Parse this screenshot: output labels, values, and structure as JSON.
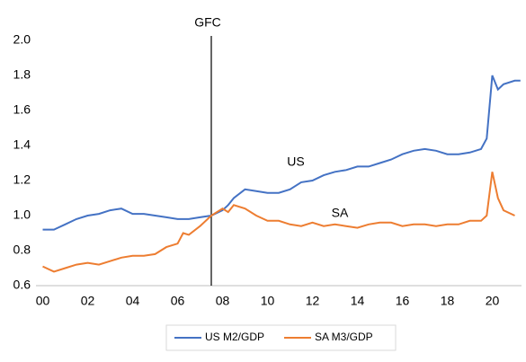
{
  "chart_data": {
    "type": "line",
    "x": [
      2000,
      2000.5,
      2001,
      2001.5,
      2002,
      2002.5,
      2003,
      2003.5,
      2004,
      2004.5,
      2005,
      2005.5,
      2006,
      2006.25,
      2006.5,
      2007,
      2007.5,
      2008,
      2008.25,
      2008.5,
      2009,
      2009.5,
      2010,
      2010.5,
      2011,
      2011.5,
      2012,
      2012.5,
      2013,
      2013.5,
      2014,
      2014.5,
      2015,
      2015.5,
      2016,
      2016.5,
      2017,
      2017.5,
      2018,
      2018.5,
      2019,
      2019.5,
      2019.75,
      2020,
      2020.25,
      2020.5,
      2021,
      2021.25
    ],
    "series": [
      {
        "name": "US M2/GDP",
        "color": "#4472c4",
        "values": [
          0.92,
          0.92,
          0.95,
          0.98,
          1.0,
          1.01,
          1.03,
          1.04,
          1.01,
          1.01,
          1.0,
          0.99,
          0.98,
          0.98,
          0.98,
          0.99,
          1.0,
          1.03,
          1.06,
          1.1,
          1.15,
          1.14,
          1.13,
          1.13,
          1.15,
          1.19,
          1.2,
          1.23,
          1.25,
          1.26,
          1.28,
          1.28,
          1.3,
          1.32,
          1.35,
          1.37,
          1.38,
          1.37,
          1.35,
          1.35,
          1.36,
          1.38,
          1.44,
          1.8,
          1.72,
          1.75,
          1.77,
          1.77
        ]
      },
      {
        "name": "SA M3/GDP",
        "color": "#ed7d31",
        "values": [
          0.71,
          0.68,
          0.7,
          0.72,
          0.73,
          0.72,
          0.74,
          0.76,
          0.77,
          0.77,
          0.78,
          0.82,
          0.84,
          0.9,
          0.89,
          0.94,
          1.0,
          1.04,
          1.02,
          1.06,
          1.04,
          1.0,
          0.97,
          0.97,
          0.95,
          0.94,
          0.96,
          0.94,
          0.95,
          0.94,
          0.93,
          0.95,
          0.96,
          0.96,
          0.94,
          0.95,
          0.95,
          0.94,
          0.95,
          0.95,
          0.97,
          0.97,
          1.0,
          1.25,
          1.1,
          1.03,
          1.0,
          null
        ]
      }
    ],
    "xlim": [
      1999.7,
      2021.3
    ],
    "xticks": [
      {
        "value": 2000,
        "label": "00"
      },
      {
        "value": 2002,
        "label": "02"
      },
      {
        "value": 2004,
        "label": "04"
      },
      {
        "value": 2006,
        "label": "06"
      },
      {
        "value": 2008,
        "label": "08"
      },
      {
        "value": 2010,
        "label": "10"
      },
      {
        "value": 2012,
        "label": "12"
      },
      {
        "value": 2014,
        "label": "14"
      },
      {
        "value": 2016,
        "label": "16"
      },
      {
        "value": 2018,
        "label": "18"
      },
      {
        "value": 2020,
        "label": "20"
      }
    ],
    "ylim": [
      0.6,
      2.0
    ],
    "yticks": [
      {
        "value": 0.6,
        "label": "0.6"
      },
      0.8,
      {
        "value": 1.0,
        "label": "1.0"
      },
      1.2,
      1.4,
      1.6,
      1.8,
      {
        "value": 2.0,
        "label": "2.0"
      }
    ],
    "grid": false,
    "legend": "bottom",
    "annotations": [
      {
        "text": "GFC",
        "x": 2007.5
      },
      {
        "text": "US"
      },
      {
        "text": "SA"
      }
    ]
  }
}
